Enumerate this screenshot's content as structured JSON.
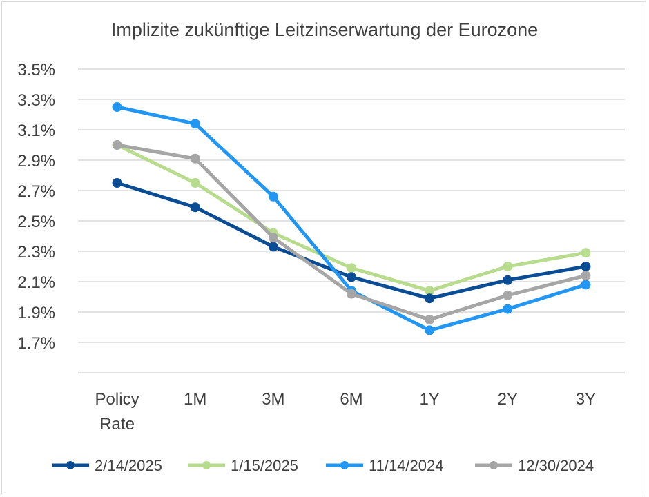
{
  "chart_data": {
    "type": "line",
    "title": "Implizite zukünftige Leitzinserwartung der Eurozone",
    "categories": [
      [
        "Policy",
        "Rate"
      ],
      [
        "1M"
      ],
      [
        "3M"
      ],
      [
        "6M"
      ],
      [
        "1Y"
      ],
      [
        "2Y"
      ],
      [
        "3Y"
      ]
    ],
    "ylim": [
      1.5,
      3.5
    ],
    "yticks": [
      "1.7%",
      "1.9%",
      "2.1%",
      "2.3%",
      "2.5%",
      "2.7%",
      "2.9%",
      "3.1%",
      "3.3%",
      "3.5%"
    ],
    "ytick_values": [
      1.7,
      1.9,
      2.1,
      2.3,
      2.5,
      2.7,
      2.9,
      3.1,
      3.3,
      3.5
    ],
    "grid": true,
    "legend_position": "bottom",
    "series": [
      {
        "name": "2/14/2025",
        "color": "#0a4d94",
        "values": [
          2.75,
          2.59,
          2.33,
          2.13,
          1.99,
          2.11,
          2.2
        ]
      },
      {
        "name": "1/15/2025",
        "color": "#b8dc8d",
        "values": [
          3.0,
          2.75,
          2.42,
          2.19,
          2.04,
          2.2,
          2.29
        ]
      },
      {
        "name": "11/14/2024",
        "color": "#2196f3",
        "values": [
          3.25,
          3.14,
          2.66,
          2.04,
          1.78,
          1.92,
          2.08
        ]
      },
      {
        "name": "12/30/2024",
        "color": "#a6a6a6",
        "values": [
          3.0,
          2.91,
          2.39,
          2.02,
          1.85,
          2.01,
          2.14
        ]
      }
    ],
    "draw_order": [
      1,
      0,
      2,
      3
    ]
  }
}
